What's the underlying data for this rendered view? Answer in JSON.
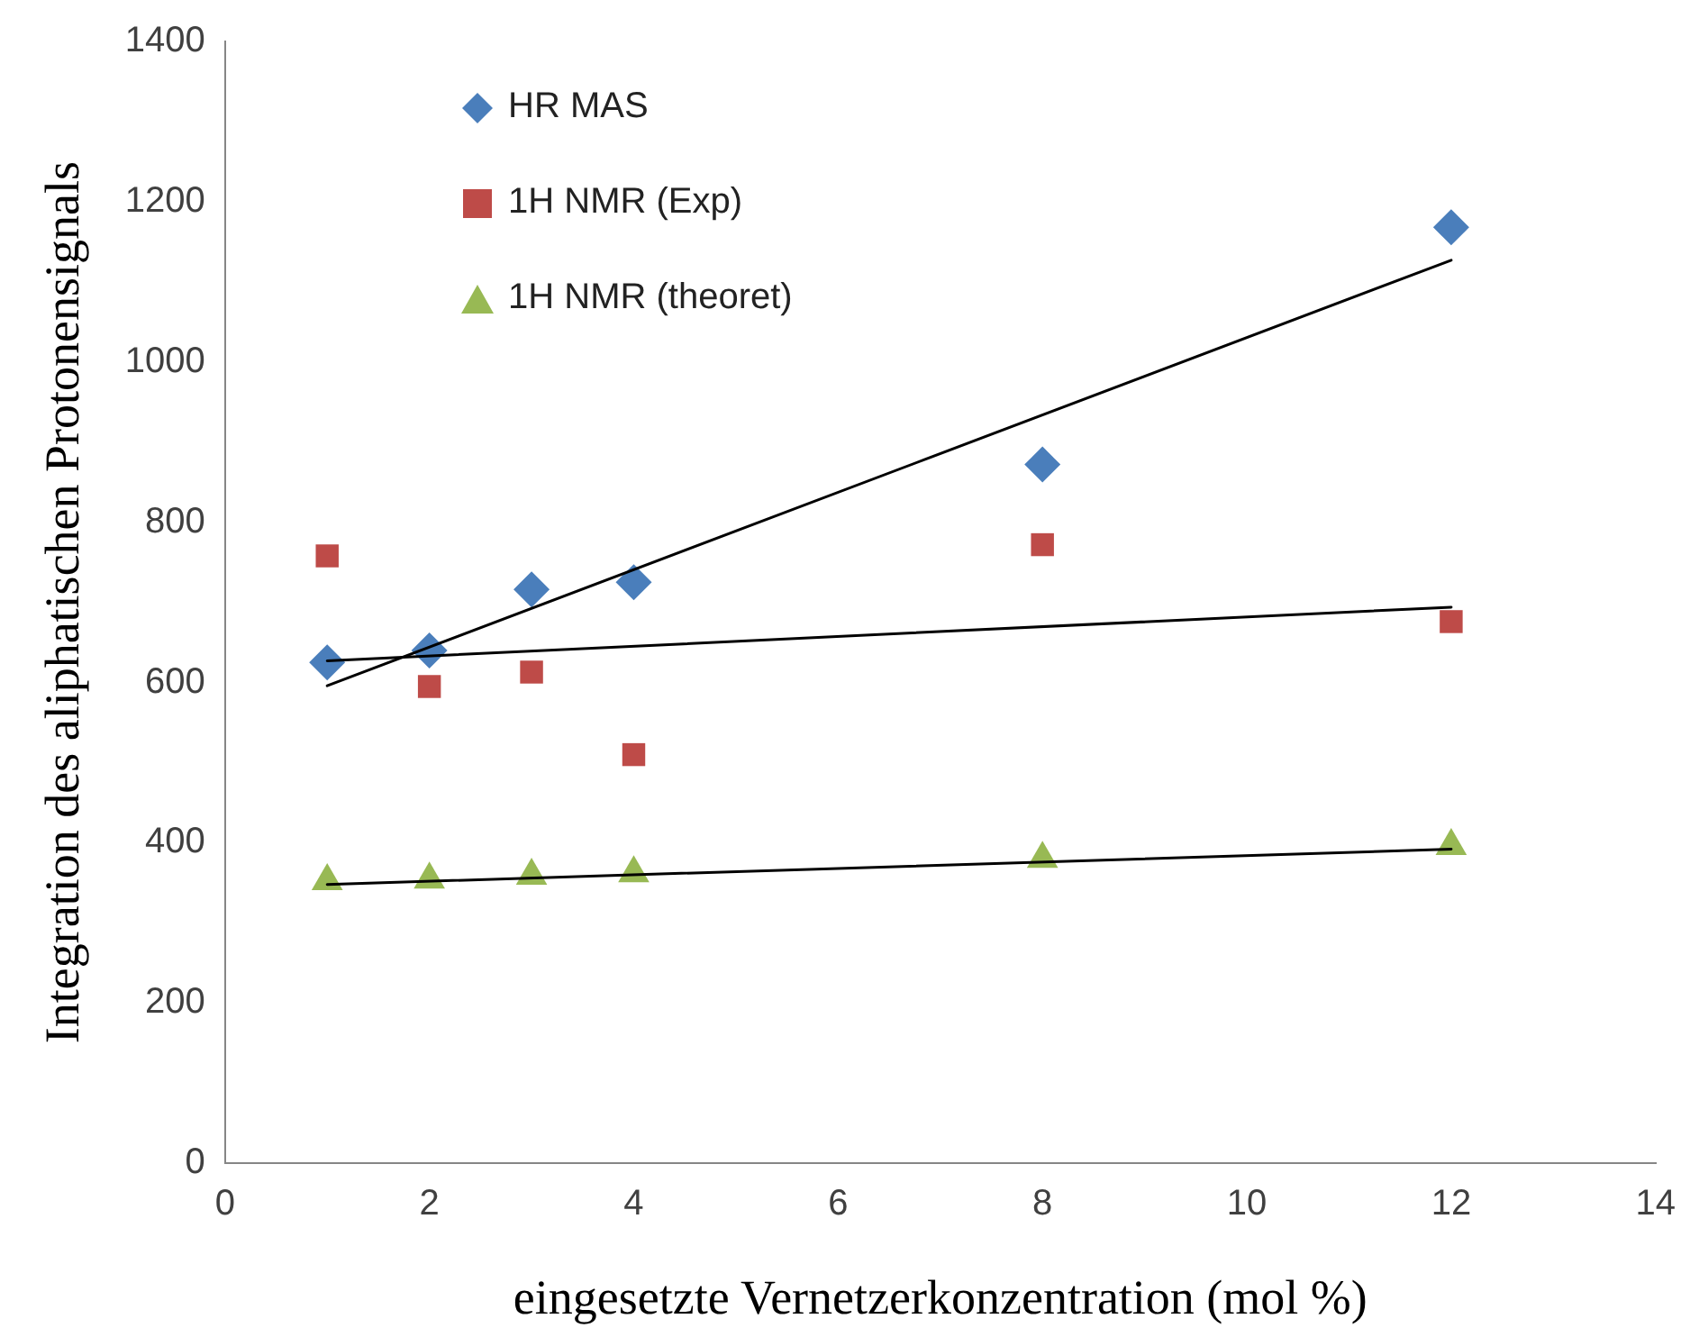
{
  "chart_data": {
    "type": "scatter",
    "xlabel": "eingesetzte Vernetzerkonzentration (mol %)",
    "ylabel": "Integration des aliphatischen Protonensignals",
    "xlim": [
      0,
      14
    ],
    "xticks": [
      0,
      2,
      4,
      6,
      8,
      10,
      12,
      14
    ],
    "ylim": [
      0,
      1400
    ],
    "yticks": [
      0,
      200,
      400,
      600,
      800,
      1000,
      1200,
      1400
    ],
    "grid": false,
    "legend": "top left",
    "series": [
      {
        "name": "HR MAS",
        "color": "#4a7ebb",
        "marker": "diamond",
        "x": [
          1,
          2,
          3,
          4,
          8,
          12
        ],
        "values": [
          625,
          640,
          716,
          725,
          872,
          1168
        ]
      },
      {
        "name": "1H NMR (Exp)",
        "color": "#be4b48",
        "marker": "square",
        "x": [
          1,
          2,
          3,
          4,
          8,
          12
        ],
        "values": [
          758,
          595,
          613,
          510,
          772,
          676
        ]
      },
      {
        "name": "1H NMR (theoret)",
        "color": "#98b954",
        "marker": "triangle",
        "x": [
          1,
          2,
          3,
          4,
          8,
          12
        ],
        "values": [
          352,
          354,
          359,
          362,
          380,
          396
        ]
      },
      {
        "type": "line",
        "color": "#000000",
        "marker": "none",
        "x": [
          1,
          12
        ],
        "values": [
          596,
          1127
        ]
      },
      {
        "type": "line",
        "color": "#000000",
        "marker": "none",
        "x": [
          1,
          12
        ],
        "values": [
          627,
          694
        ]
      },
      {
        "type": "line",
        "color": "#000000",
        "marker": "none",
        "x": [
          1,
          12
        ],
        "values": [
          348,
          392
        ]
      }
    ]
  }
}
